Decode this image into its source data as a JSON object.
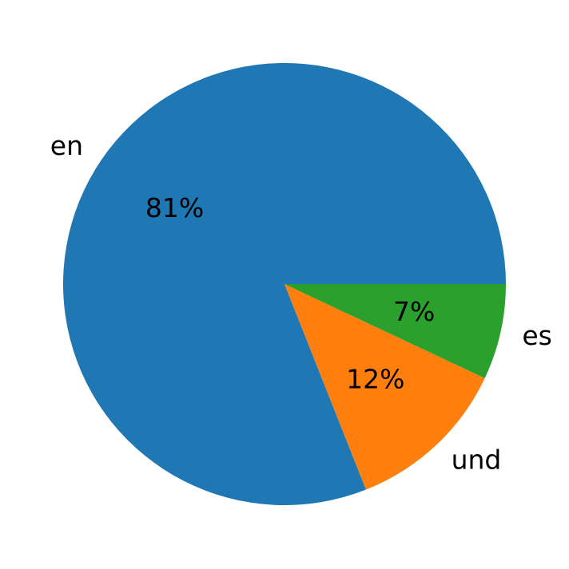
{
  "chart_data": {
    "type": "pie",
    "categories": [
      "en",
      "und",
      "es"
    ],
    "values": [
      81,
      12,
      7
    ],
    "value_labels": [
      "81%",
      "12%",
      "7%"
    ],
    "colors": [
      "#1f77b4",
      "#ff7f0e",
      "#2ca02c"
    ]
  }
}
